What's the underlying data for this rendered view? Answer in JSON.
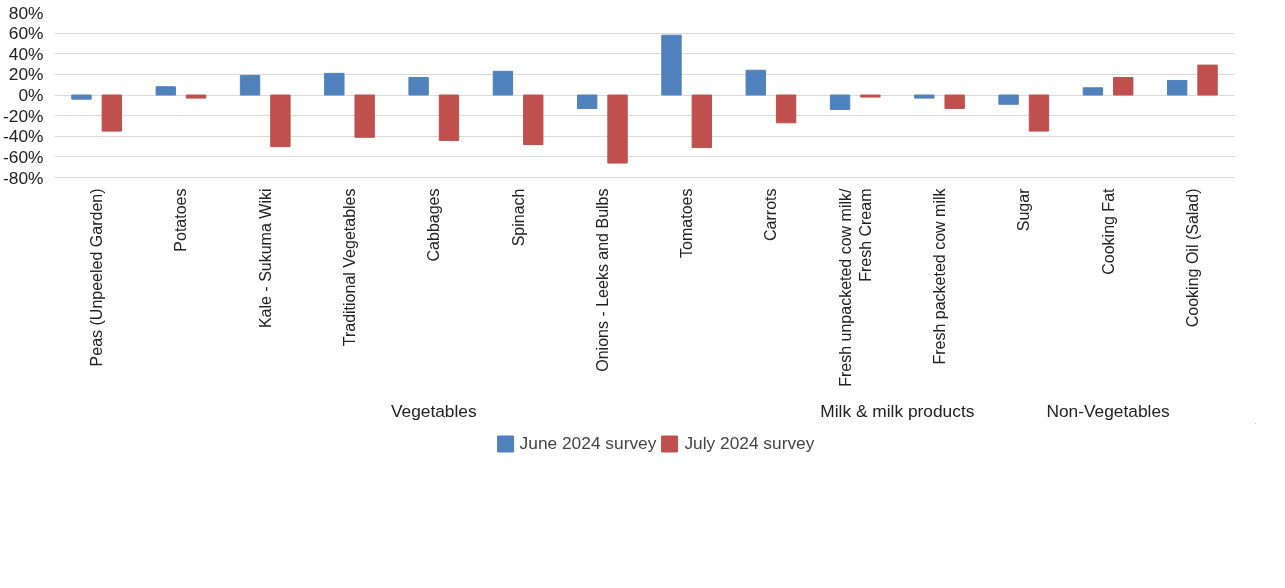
{
  "chart_data": {
    "type": "bar",
    "categories": [
      "Peas (Unpeeled Garden)",
      "Potatoes",
      "Kale - Sukuma Wiki",
      "Traditional Vegetables",
      "Cabbages",
      "Spinach",
      "Onions - Leeks and Bulbs",
      "Tomatoes",
      "Carrots",
      "Fresh unpacketed cow milk/\nFresh Cream",
      "Fresh packeted cow milk",
      "Sugar",
      "Cooking Fat",
      "Cooking Oil (Salad)"
    ],
    "series": [
      {
        "name": "June 2024 survey",
        "color": "#4f81bd",
        "values": [
          -4,
          8,
          19,
          21,
          17,
          23,
          -13,
          58,
          24,
          -14,
          -3,
          -9,
          7,
          14
        ]
      },
      {
        "name": "July 2024 survey",
        "color": "#c0504d",
        "values": [
          -35,
          -3,
          -50,
          -41,
          -44,
          -48,
          -66,
          -51,
          -27,
          -2,
          -13,
          -35,
          17,
          29
        ]
      }
    ],
    "ylim": [
      -80,
      80
    ],
    "yticks": [
      {
        "value": -80,
        "label": "-80%"
      },
      {
        "value": -60,
        "label": "-60%"
      },
      {
        "value": -40,
        "label": "-40%"
      },
      {
        "value": -20,
        "label": "-20%"
      },
      {
        "value": 0,
        "label": "0%"
      },
      {
        "value": 20,
        "label": "20%"
      },
      {
        "value": 40,
        "label": "40%"
      },
      {
        "value": 60,
        "label": "60%"
      },
      {
        "value": 80,
        "label": "80%"
      }
    ],
    "annotations": [
      "Vegetables",
      "Milk & milk products",
      "Non-Vegetables"
    ],
    "grid": "y",
    "legend": "bottom"
  }
}
